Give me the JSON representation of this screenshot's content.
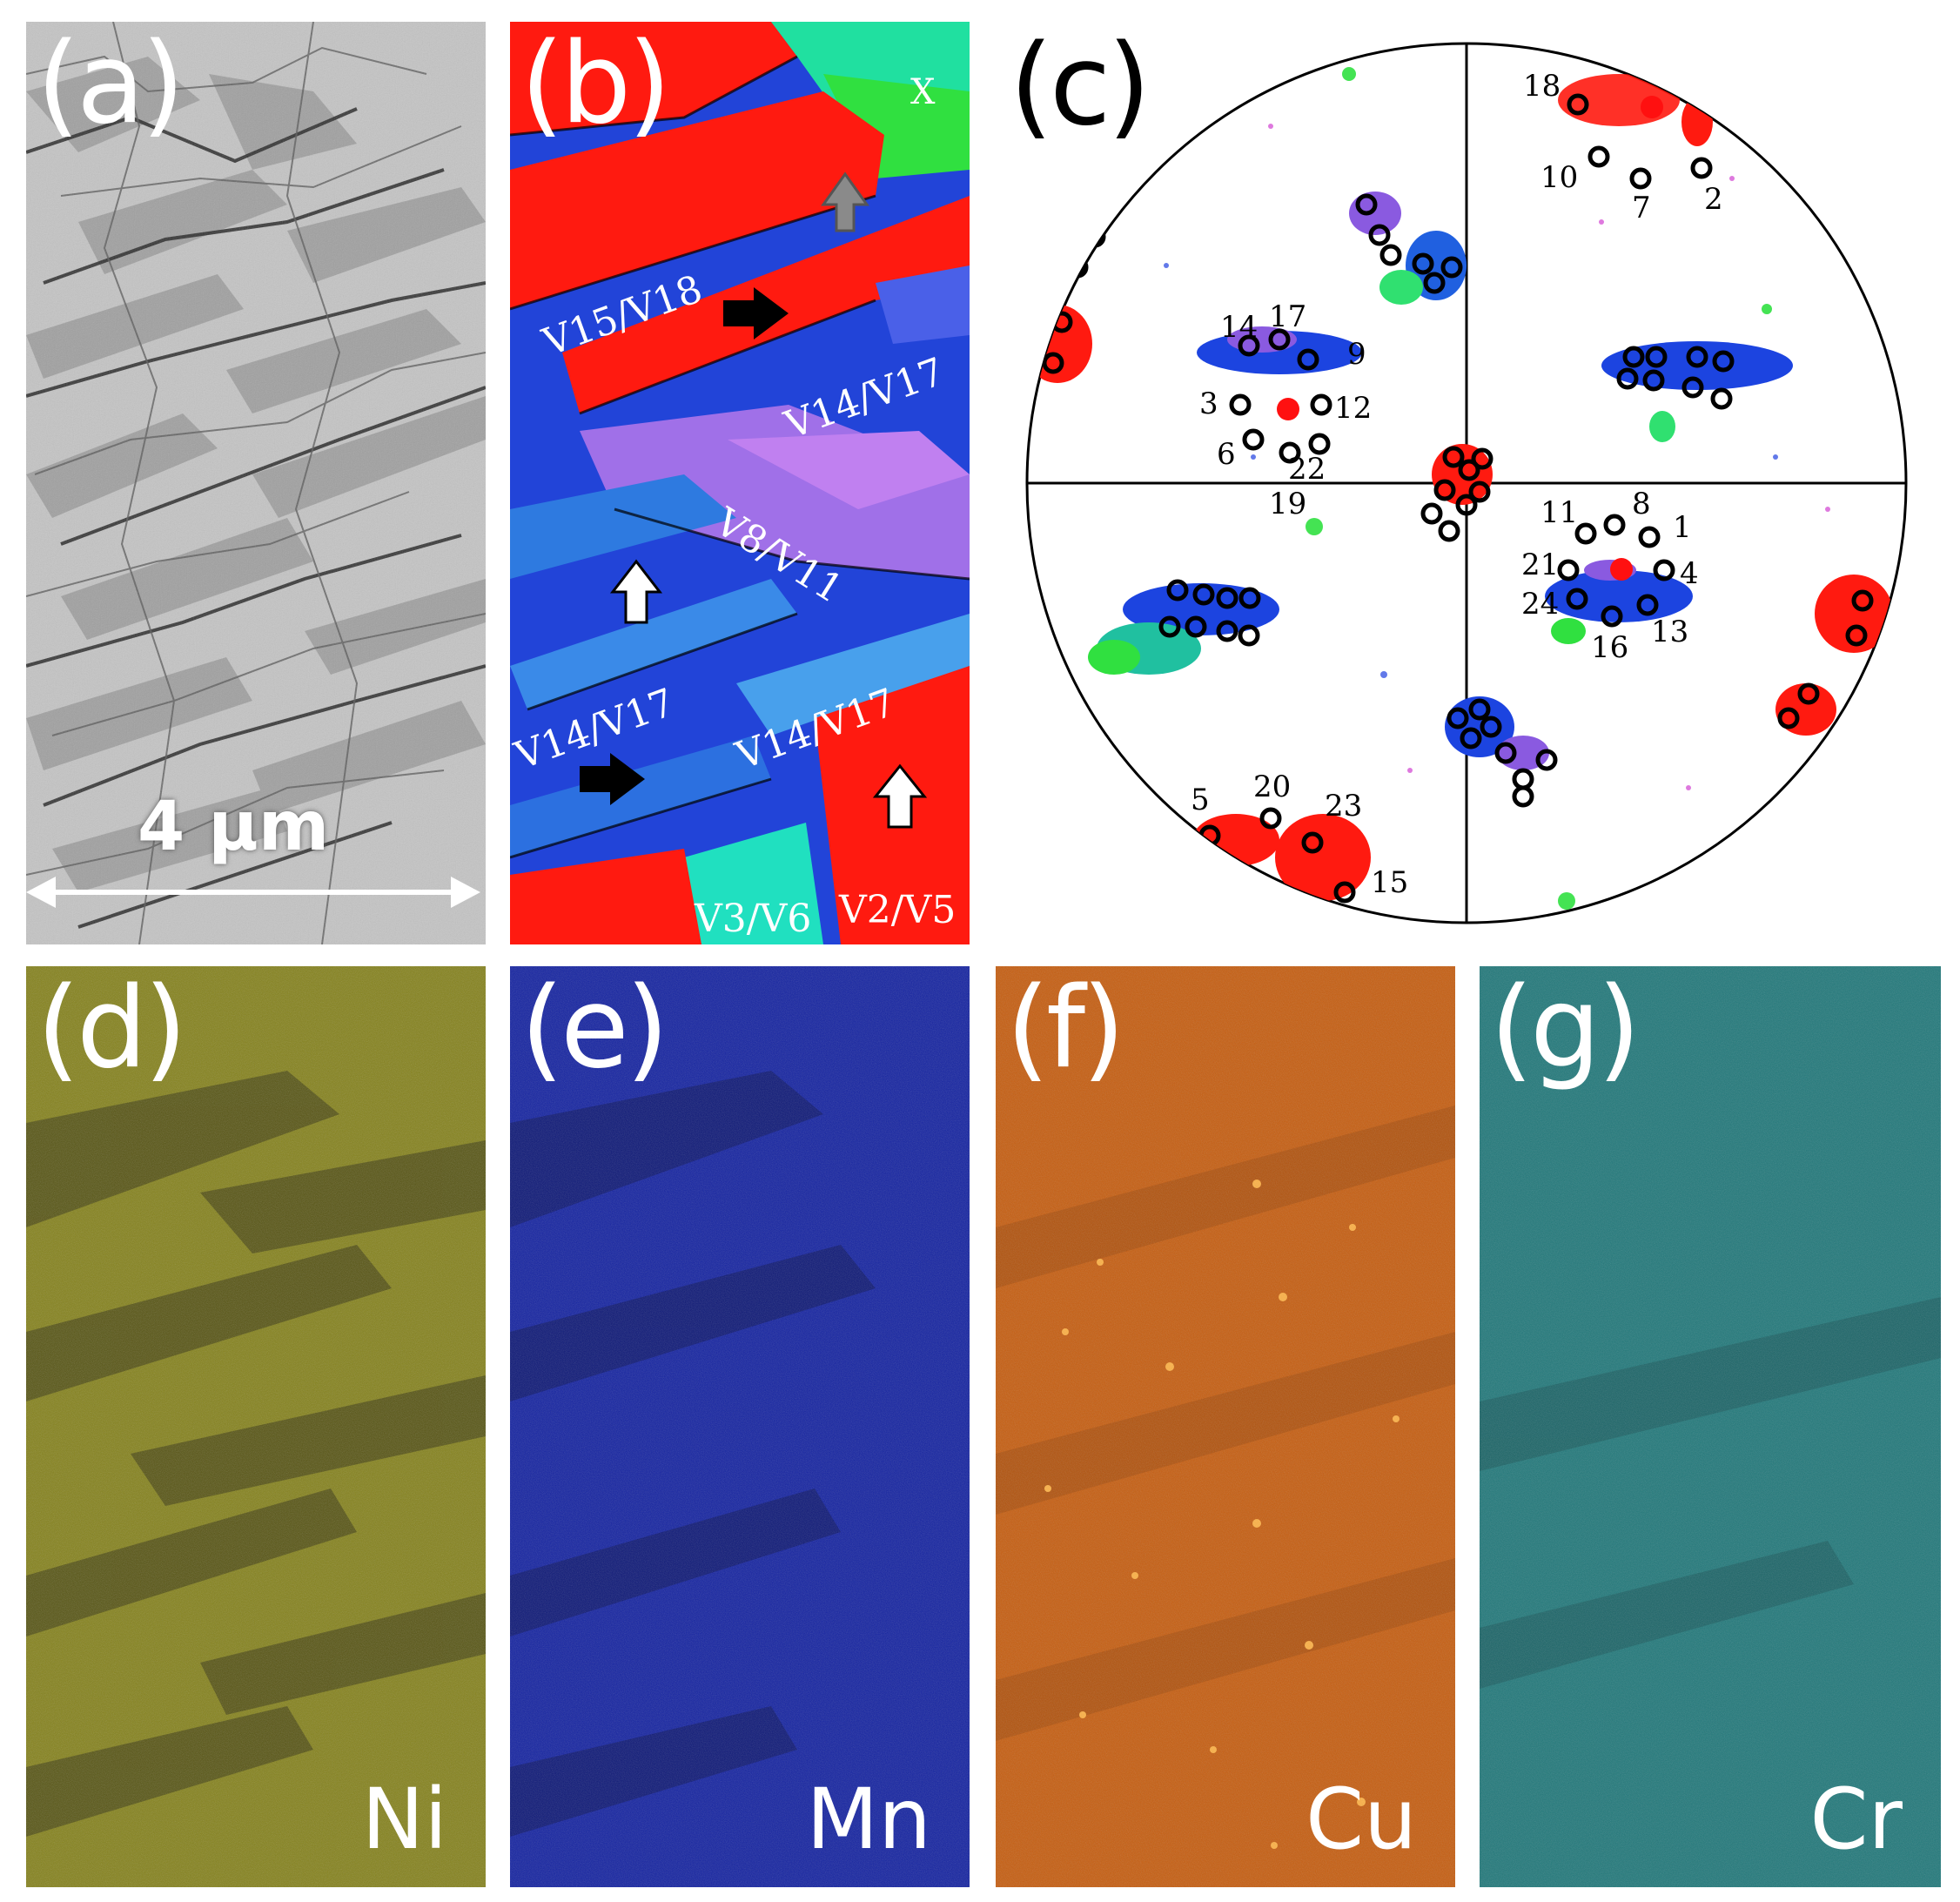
{
  "colors": {
    "ni": "#7e7c12",
    "mn": "#0c1a95",
    "cu": "#c85c0a",
    "cr": "#1b7376",
    "ipf_red": "#ff1a10",
    "ipf_blue": "#1c44e0",
    "ipf_violet": "#8a5ae0"
  },
  "panels": {
    "a": {
      "label": "(a)",
      "scale_bar": "4 μm"
    },
    "b": {
      "label": "(b)",
      "corner": "X",
      "variants": [
        "V15/V18",
        "V14/V17",
        "V8/V11",
        "V14/V17",
        "V14/V17",
        "V3/V6",
        "V2/V5"
      ],
      "arrows": [
        "gray-arrow-up",
        "black-arrow-right",
        "white-arrow-up",
        "black-arrow-right",
        "white-arrow-up"
      ]
    },
    "c": {
      "label": "(c)",
      "pole_numbers": [
        "18",
        "10",
        "7",
        "2",
        "14",
        "17",
        "9",
        "3",
        "12",
        "6",
        "22",
        "19",
        "11",
        "8",
        "1",
        "21",
        "4",
        "24",
        "13",
        "16",
        "5",
        "20",
        "23",
        "15"
      ]
    },
    "d": {
      "label": "(d)",
      "element": "Ni"
    },
    "e": {
      "label": "(e)",
      "element": "Mn"
    },
    "f": {
      "label": "(f)",
      "element": "Cu"
    },
    "g": {
      "label": "(g)",
      "element": "Cr"
    }
  }
}
